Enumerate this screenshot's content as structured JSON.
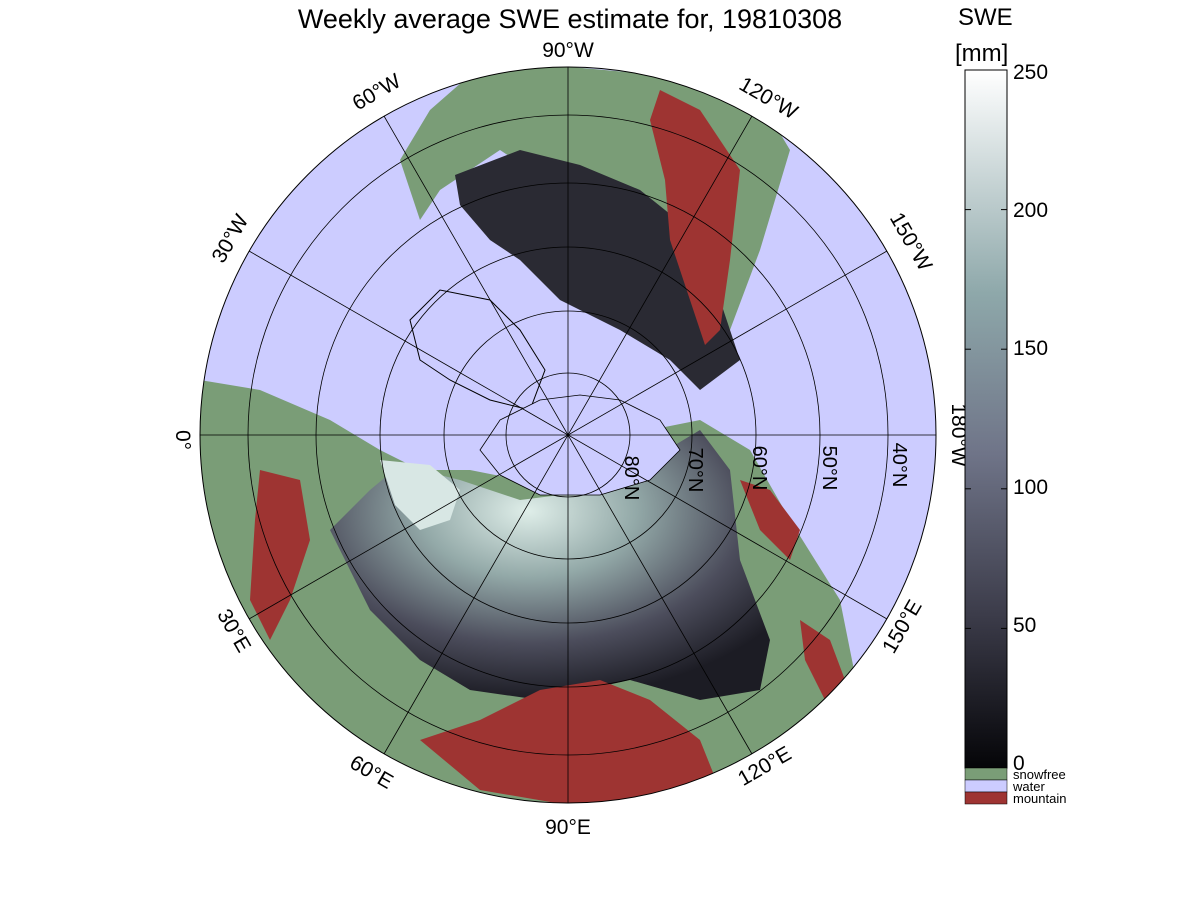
{
  "title": "Weekly average SWE estimate for, 19810308",
  "colorbar": {
    "label_line1": "SWE",
    "label_line2": "[mm]",
    "range": [
      0,
      250
    ],
    "ticks": [
      "250",
      "200",
      "150",
      "100",
      "50",
      "0"
    ],
    "colors": {
      "low": "#050508",
      "mid_low": "#3c3c4a",
      "mid": "#6f7488",
      "mid_high": "#8ea8aa",
      "high": "#ffffff"
    }
  },
  "categories": [
    {
      "label": "snowfree",
      "color": "#7a9d77"
    },
    {
      "label": "water",
      "color": "#ccccff"
    },
    {
      "label": "mountain",
      "color": "#9e3432"
    }
  ],
  "map": {
    "projection": "north polar stereographic",
    "outer_latitude": "30",
    "longitude_labels": [
      "90°W",
      "120°W",
      "150°W",
      "180°W",
      "150°E",
      "120°E",
      "90°E",
      "60°E",
      "30°E",
      "0°",
      "30°W",
      "60°W"
    ],
    "latitude_labels": [
      "40°N",
      "50°N",
      "60°N",
      "70°N",
      "80°N"
    ]
  }
}
